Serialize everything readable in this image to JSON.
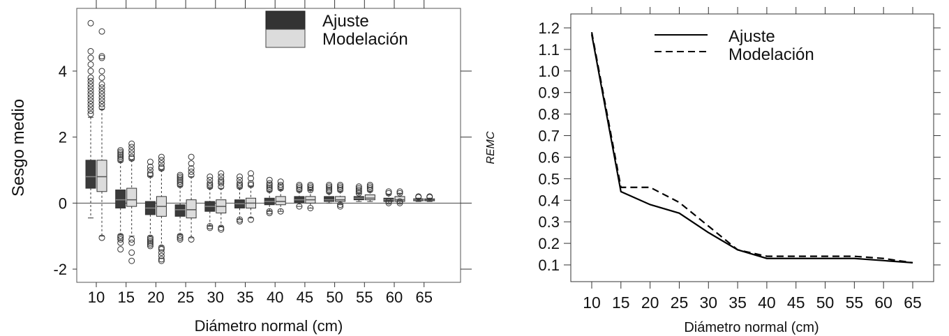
{
  "chart_data": [
    {
      "type": "boxplot",
      "xlabel": "Diámetro normal (cm)",
      "ylabel": "Sesgo medio",
      "categories": [
        "10",
        "15",
        "20",
        "25",
        "30",
        "35",
        "40",
        "45",
        "50",
        "55",
        "60",
        "65"
      ],
      "ylim": [
        -2.4,
        5.9
      ],
      "yticks": [
        "-2",
        "0",
        "2",
        "4"
      ],
      "reference_line_y": 0,
      "legend": {
        "position": "top-center",
        "entries": [
          "Ajuste",
          "Modelación"
        ]
      },
      "series": [
        {
          "name": "Ajuste",
          "color": "#3a3a3a",
          "boxes": [
            {
              "q1": 0.45,
              "med": 0.8,
              "q3": 1.3,
              "wlo": -0.45,
              "whi": 2.6,
              "out_lo": [],
              "out_hi": [
                2.7,
                2.8,
                2.9,
                3.0,
                3.1,
                3.2,
                3.3,
                3.4,
                3.5,
                3.6,
                3.7,
                3.8,
                4.0,
                4.2,
                4.4,
                4.6,
                5.45
              ]
            },
            {
              "q1": -0.15,
              "med": 0.1,
              "q3": 0.4,
              "wlo": -0.95,
              "whi": 1.25,
              "out_lo": [
                -1.0,
                -1.05,
                -1.1,
                -1.2,
                -1.4
              ],
              "out_hi": [
                1.3,
                1.35,
                1.4,
                1.45,
                1.5,
                1.55,
                1.6
              ]
            },
            {
              "q1": -0.35,
              "med": -0.15,
              "q3": 0.05,
              "wlo": -1.0,
              "whi": 0.8,
              "out_lo": [
                -1.05,
                -1.1,
                -1.15,
                -1.2,
                -1.25,
                -1.3
              ],
              "out_hi": [
                0.85,
                0.9,
                1.0,
                1.1,
                1.25
              ]
            },
            {
              "q1": -0.4,
              "med": -0.2,
              "q3": -0.05,
              "wlo": -0.95,
              "whi": 0.5,
              "out_lo": [
                -1.0,
                -1.05,
                -1.1
              ],
              "out_hi": [
                0.55,
                0.6,
                0.65,
                0.7,
                0.75,
                0.8,
                0.85
              ]
            },
            {
              "q1": -0.25,
              "med": -0.1,
              "q3": 0.05,
              "wlo": -0.7,
              "whi": 0.45,
              "out_lo": [
                -0.7,
                -0.75
              ],
              "out_hi": [
                0.5,
                0.55,
                0.6,
                0.7,
                0.8
              ]
            },
            {
              "q1": -0.15,
              "med": -0.02,
              "q3": 0.1,
              "wlo": -0.5,
              "whi": 0.45,
              "out_lo": [
                -0.5,
                -0.55
              ],
              "out_hi": [
                0.5,
                0.55,
                0.6,
                0.7,
                0.8
              ]
            },
            {
              "q1": -0.05,
              "med": 0.05,
              "q3": 0.15,
              "wlo": -0.25,
              "whi": 0.35,
              "out_lo": [
                -0.25,
                -0.3
              ],
              "out_hi": [
                0.4,
                0.45,
                0.5,
                0.55,
                0.6,
                0.7
              ]
            },
            {
              "q1": 0.02,
              "med": 0.1,
              "q3": 0.2,
              "wlo": -0.1,
              "whi": 0.35,
              "out_lo": [
                -0.1
              ],
              "out_hi": [
                0.4,
                0.45,
                0.5,
                0.55
              ]
            },
            {
              "q1": 0.05,
              "med": 0.1,
              "q3": 0.2,
              "wlo": 0.0,
              "whi": 0.3,
              "out_lo": [],
              "out_hi": [
                0.35,
                0.4,
                0.45,
                0.5,
                0.55
              ]
            },
            {
              "q1": 0.1,
              "med": 0.15,
              "q3": 0.2,
              "wlo": 0.05,
              "whi": 0.3,
              "out_lo": [],
              "out_hi": [
                0.3,
                0.35,
                0.4,
                0.45,
                0.5
              ]
            },
            {
              "q1": 0.05,
              "med": 0.1,
              "q3": 0.15,
              "wlo": 0.0,
              "whi": 0.25,
              "out_lo": [
                0.0,
                0.05
              ],
              "out_hi": [
                0.3,
                0.35
              ]
            },
            {
              "q1": 0.07,
              "med": 0.1,
              "q3": 0.13,
              "wlo": 0.05,
              "whi": 0.15,
              "out_lo": [],
              "out_hi": [
                0.18,
                0.2
              ]
            }
          ]
        },
        {
          "name": "Modelación",
          "color": "#dcdcdc",
          "boxes": [
            {
              "q1": 0.35,
              "med": 0.8,
              "q3": 1.3,
              "wlo": -1.0,
              "whi": 2.85,
              "out_lo": [
                -1.05
              ],
              "out_hi": [
                2.9,
                3.0,
                3.1,
                3.2,
                3.3,
                3.4,
                3.5,
                3.6,
                3.8,
                4.0,
                4.4,
                4.45,
                5.2
              ]
            },
            {
              "q1": -0.1,
              "med": 0.1,
              "q3": 0.45,
              "wlo": -1.0,
              "whi": 1.3,
              "out_lo": [
                -1.1,
                -1.2,
                -1.5,
                -1.75
              ],
              "out_hi": [
                1.35,
                1.4,
                1.5,
                1.6,
                1.7,
                1.8
              ]
            },
            {
              "q1": -0.4,
              "med": -0.1,
              "q3": 0.2,
              "wlo": -1.3,
              "whi": 1.0,
              "out_lo": [
                -1.35,
                -1.4,
                -1.5,
                -1.6,
                -1.7,
                -1.75
              ],
              "out_hi": [
                1.05,
                1.1,
                1.2,
                1.3,
                1.4
              ]
            },
            {
              "q1": -0.45,
              "med": -0.2,
              "q3": 0.1,
              "wlo": -1.05,
              "whi": 0.8,
              "out_lo": [
                -1.1
              ],
              "out_hi": [
                0.85,
                0.95,
                1.05,
                1.2,
                1.4
              ]
            },
            {
              "q1": -0.3,
              "med": -0.1,
              "q3": 0.1,
              "wlo": -0.7,
              "whi": 0.45,
              "out_lo": [
                -0.75,
                -0.8
              ],
              "out_hi": [
                0.5,
                0.6,
                0.65,
                0.7,
                0.8,
                0.9
              ]
            },
            {
              "q1": -0.15,
              "med": 0.0,
              "q3": 0.15,
              "wlo": -0.45,
              "whi": 0.5,
              "out_lo": [
                -0.5
              ],
              "out_hi": [
                0.55,
                0.6,
                0.75,
                0.9
              ]
            },
            {
              "q1": -0.05,
              "med": 0.05,
              "q3": 0.2,
              "wlo": -0.25,
              "whi": 0.4,
              "out_lo": [
                -0.25
              ],
              "out_hi": [
                0.45,
                0.5,
                0.55,
                0.65
              ]
            },
            {
              "q1": 0.0,
              "med": 0.1,
              "q3": 0.2,
              "wlo": -0.15,
              "whi": 0.4,
              "out_lo": [
                -0.15
              ],
              "out_hi": [
                0.4,
                0.45,
                0.5,
                0.55
              ]
            },
            {
              "q1": 0.05,
              "med": 0.1,
              "q3": 0.2,
              "wlo": -0.05,
              "whi": 0.35,
              "out_lo": [
                -0.05,
                -0.1
              ],
              "out_hi": [
                0.4,
                0.45,
                0.5,
                0.55
              ]
            },
            {
              "q1": 0.1,
              "med": 0.15,
              "q3": 0.25,
              "wlo": 0.05,
              "whi": 0.35,
              "out_lo": [],
              "out_hi": [
                0.4,
                0.45,
                0.5,
                0.55
              ]
            },
            {
              "q1": 0.05,
              "med": 0.1,
              "q3": 0.2,
              "wlo": 0.0,
              "whi": 0.3,
              "out_lo": [
                0.0,
                0.05
              ],
              "out_hi": [
                0.3,
                0.35
              ]
            },
            {
              "q1": 0.07,
              "med": 0.1,
              "q3": 0.13,
              "wlo": 0.05,
              "whi": 0.15,
              "out_lo": [],
              "out_hi": [
                0.18,
                0.2
              ]
            }
          ]
        }
      ]
    },
    {
      "type": "line",
      "xlabel": "Diámetro normal (cm)",
      "ylabel": "REMC",
      "x": [
        10,
        15,
        20,
        25,
        30,
        35,
        40,
        45,
        50,
        55,
        60,
        65
      ],
      "xticks": [
        "10",
        "15",
        "20",
        "25",
        "30",
        "35",
        "40",
        "45",
        "50",
        "55",
        "60",
        "65"
      ],
      "ylim": [
        0.1,
        1.2
      ],
      "yticks": [
        "0.1",
        "0.2",
        "0.3",
        "0.4",
        "0.5",
        "0.6",
        "0.7",
        "0.8",
        "0.9",
        "1.0",
        "1.1",
        "1.2"
      ],
      "legend": {
        "position": "top-center",
        "entries": [
          "Ajuste",
          "Modelación"
        ]
      },
      "series": [
        {
          "name": "Ajuste",
          "style": "solid",
          "values": [
            1.17,
            0.44,
            0.38,
            0.34,
            0.25,
            0.17,
            0.13,
            0.13,
            0.13,
            0.13,
            0.12,
            0.11
          ]
        },
        {
          "name": "Modelación",
          "style": "dashed",
          "values": [
            1.18,
            0.46,
            0.46,
            0.39,
            0.28,
            0.17,
            0.14,
            0.14,
            0.14,
            0.14,
            0.13,
            0.11
          ]
        }
      ]
    }
  ]
}
